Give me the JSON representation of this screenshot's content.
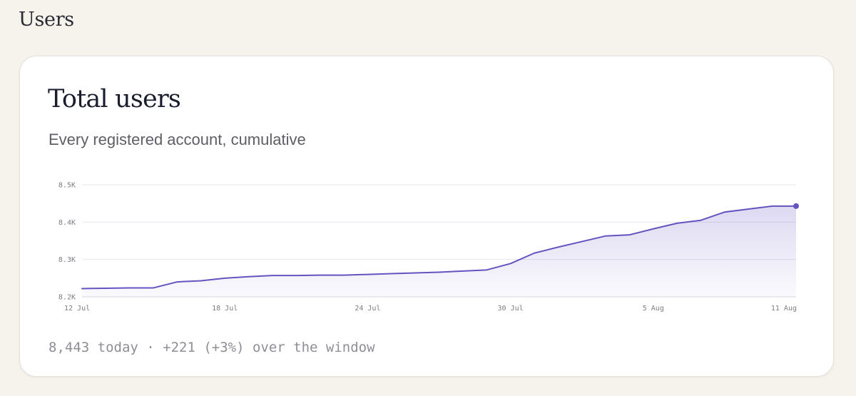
{
  "page": {
    "section_title": "Users"
  },
  "card": {
    "title": "Total users",
    "subtitle": "Every registered account, cumulative",
    "footer": "8,443 today · +221 (+3%) over the window"
  },
  "colors": {
    "background": "#f6f2ec",
    "card": "#ffffff",
    "line": "#6554c0",
    "area": "#6554c0",
    "grid": "#e7e5ee",
    "axis_text": "#7d7e86"
  },
  "chart_data": {
    "type": "area",
    "title": "",
    "xlabel": "",
    "ylabel": "",
    "ylim": [
      8200,
      8500
    ],
    "y_ticks": [
      8200,
      8300,
      8400,
      8500
    ],
    "y_tick_labels": [
      "8.2K",
      "8.3K",
      "8.4K",
      "8.5K"
    ],
    "x_tick_labels": [
      "12 Jul",
      "18 Jul",
      "24 Jul",
      "30 Jul",
      "5 Aug",
      "11 Aug"
    ],
    "grid": true,
    "legend": "none",
    "last_point_marker": true,
    "x": [
      "12 Jul",
      "13 Jul",
      "14 Jul",
      "15 Jul",
      "16 Jul",
      "17 Jul",
      "18 Jul",
      "19 Jul",
      "20 Jul",
      "21 Jul",
      "22 Jul",
      "23 Jul",
      "24 Jul",
      "25 Jul",
      "26 Jul",
      "27 Jul",
      "28 Jul",
      "29 Jul",
      "30 Jul",
      "31 Jul",
      "1 Aug",
      "2 Aug",
      "3 Aug",
      "4 Aug",
      "5 Aug",
      "6 Aug",
      "7 Aug",
      "8 Aug",
      "9 Aug",
      "10 Aug",
      "11 Aug"
    ],
    "values": [
      8222,
      8223,
      8224,
      8224,
      8240,
      8243,
      8250,
      8254,
      8257,
      8257,
      8258,
      8258,
      8260,
      8262,
      8264,
      8266,
      8269,
      8272,
      8289,
      8317,
      8333,
      8348,
      8363,
      8366,
      8382,
      8397,
      8405,
      8427,
      8435,
      8443,
      8443
    ]
  }
}
